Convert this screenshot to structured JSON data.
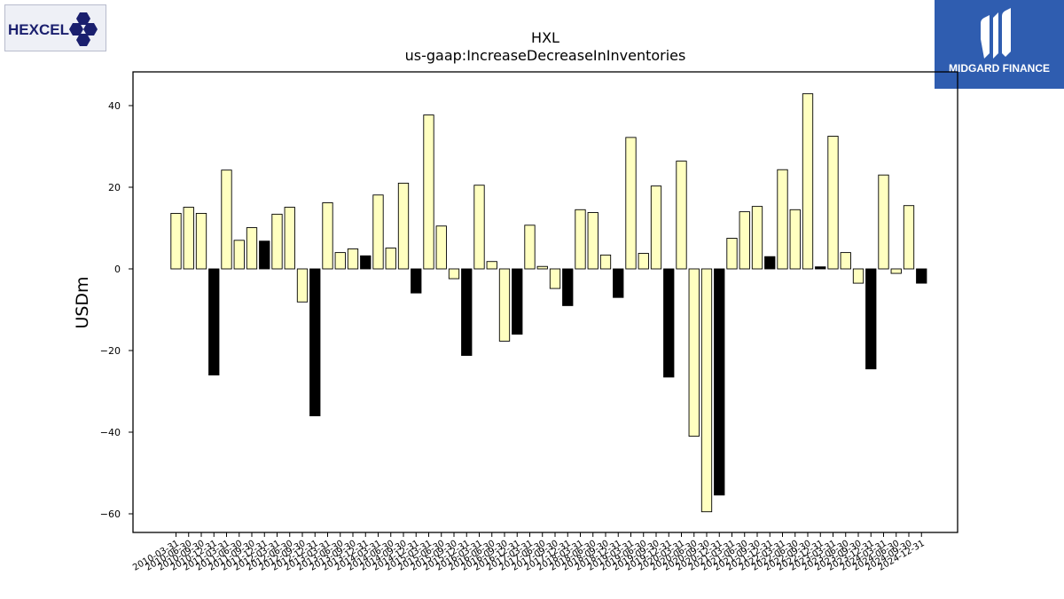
{
  "logos": {
    "left_text": "HEXCEL",
    "left_icon": "hexagon-cluster-icon",
    "right_text": "MIDGARD FINANCE",
    "right_icon": "midgard-m-icon",
    "colors": {
      "left_text": "#1a1f6e",
      "left_hex": "#1a1f6e",
      "right_bg": "#2f5db0",
      "right_fg": "#ffffff"
    }
  },
  "chart_data": {
    "type": "bar",
    "title": "HXL",
    "subtitle": "us-gaap:IncreaseDecreaseInInventories",
    "xlabel": "",
    "ylabel": "USDm",
    "ylim": [
      -65,
      48
    ],
    "yticks": [
      40,
      20,
      0,
      -20,
      -40,
      -60
    ],
    "ytick_labels": [
      "40",
      "20",
      "0",
      "−20",
      "−40",
      "−60"
    ],
    "grid": false,
    "colors": {
      "q4": "#000000",
      "other": "#ffffc0",
      "edge": "#000000"
    },
    "categories": [
      "2010-03-31",
      "2010-06-30",
      "2010-09-30",
      "2010-12-31",
      "2011-03-31",
      "2011-06-30",
      "2011-09-30",
      "2011-12-31",
      "2012-03-31",
      "2012-06-30",
      "2012-09-30",
      "2012-12-31",
      "2013-03-31",
      "2013-06-30",
      "2013-09-30",
      "2013-12-31",
      "2014-03-31",
      "2014-06-30",
      "2014-09-30",
      "2014-12-31",
      "2015-03-31",
      "2015-06-30",
      "2015-09-30",
      "2015-12-31",
      "2016-03-31",
      "2016-06-30",
      "2016-09-30",
      "2016-12-31",
      "2017-03-31",
      "2017-06-30",
      "2017-09-30",
      "2017-12-31",
      "2018-03-31",
      "2018-06-30",
      "2018-09-30",
      "2018-12-31",
      "2019-03-31",
      "2019-06-30",
      "2019-09-30",
      "2019-12-31",
      "2020-03-31",
      "2020-06-30",
      "2020-09-30",
      "2020-12-31",
      "2021-03-31",
      "2021-06-30",
      "2021-09-30",
      "2021-12-31",
      "2022-03-31",
      "2022-06-30",
      "2022-09-30",
      "2022-12-31",
      "2023-03-31",
      "2023-06-30",
      "2023-09-30",
      "2023-12-31",
      "2024-03-31",
      "2024-06-30",
      "2024-09-30",
      "2024-12-31"
    ],
    "values": [
      13.6,
      15.1,
      13.6,
      -26.0,
      24.2,
      7.0,
      10.1,
      6.8,
      13.4,
      15.1,
      -8.1,
      -36.0,
      16.2,
      4.0,
      4.9,
      3.2,
      18.1,
      5.1,
      21.0,
      -5.9,
      37.7,
      10.5,
      -2.4,
      -21.2,
      20.5,
      1.8,
      -17.7,
      -16.0,
      10.7,
      0.6,
      -4.8,
      -9.0,
      14.5,
      13.8,
      3.4,
      -7.0,
      32.2,
      3.8,
      20.3,
      -26.5,
      26.4,
      -41.0,
      -59.5,
      -55.4,
      7.5,
      14.0,
      15.3,
      3.0,
      24.3,
      14.5,
      42.9,
      0.5,
      32.5,
      4.0,
      -3.5,
      -24.5,
      23.0,
      -1.1,
      15.5,
      -3.5
    ]
  }
}
